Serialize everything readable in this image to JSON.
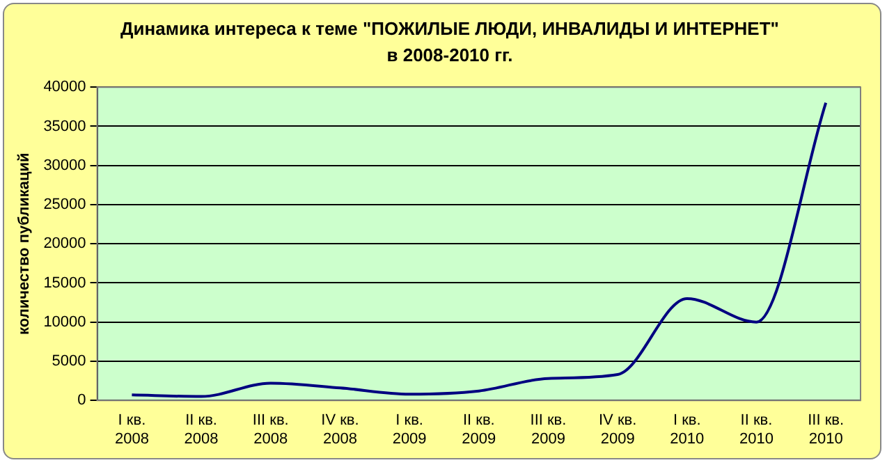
{
  "chart_data": {
    "type": "line",
    "title": "Динамика интереса к теме \"ПОЖИЛЫЕ ЛЮДИ, ИНВАЛИДЫ И ИНТЕРНЕТ\" в 2008-2010 гг.",
    "ylabel": "количество публикаций",
    "categories": [
      "I кв. 2008",
      "II кв. 2008",
      "III кв. 2008",
      "IV кв. 2008",
      "I кв. 2009",
      "II кв. 2009",
      "III кв. 2009",
      "IV кв. 2009",
      "I кв. 2010",
      "II кв. 2010",
      "III кв. 2010"
    ],
    "series": [
      {
        "color": "#000080",
        "values": [
          700,
          500,
          2200,
          1600,
          800,
          1200,
          2800,
          3300,
          13000,
          10000,
          38000
        ]
      }
    ],
    "ylim": [
      0,
      40000
    ],
    "yticks": [
      0,
      5000,
      10000,
      15000,
      20000,
      25000,
      30000,
      35000,
      40000
    ],
    "grid": "y",
    "legend": false,
    "marker": "none",
    "line_style": "solid"
  }
}
